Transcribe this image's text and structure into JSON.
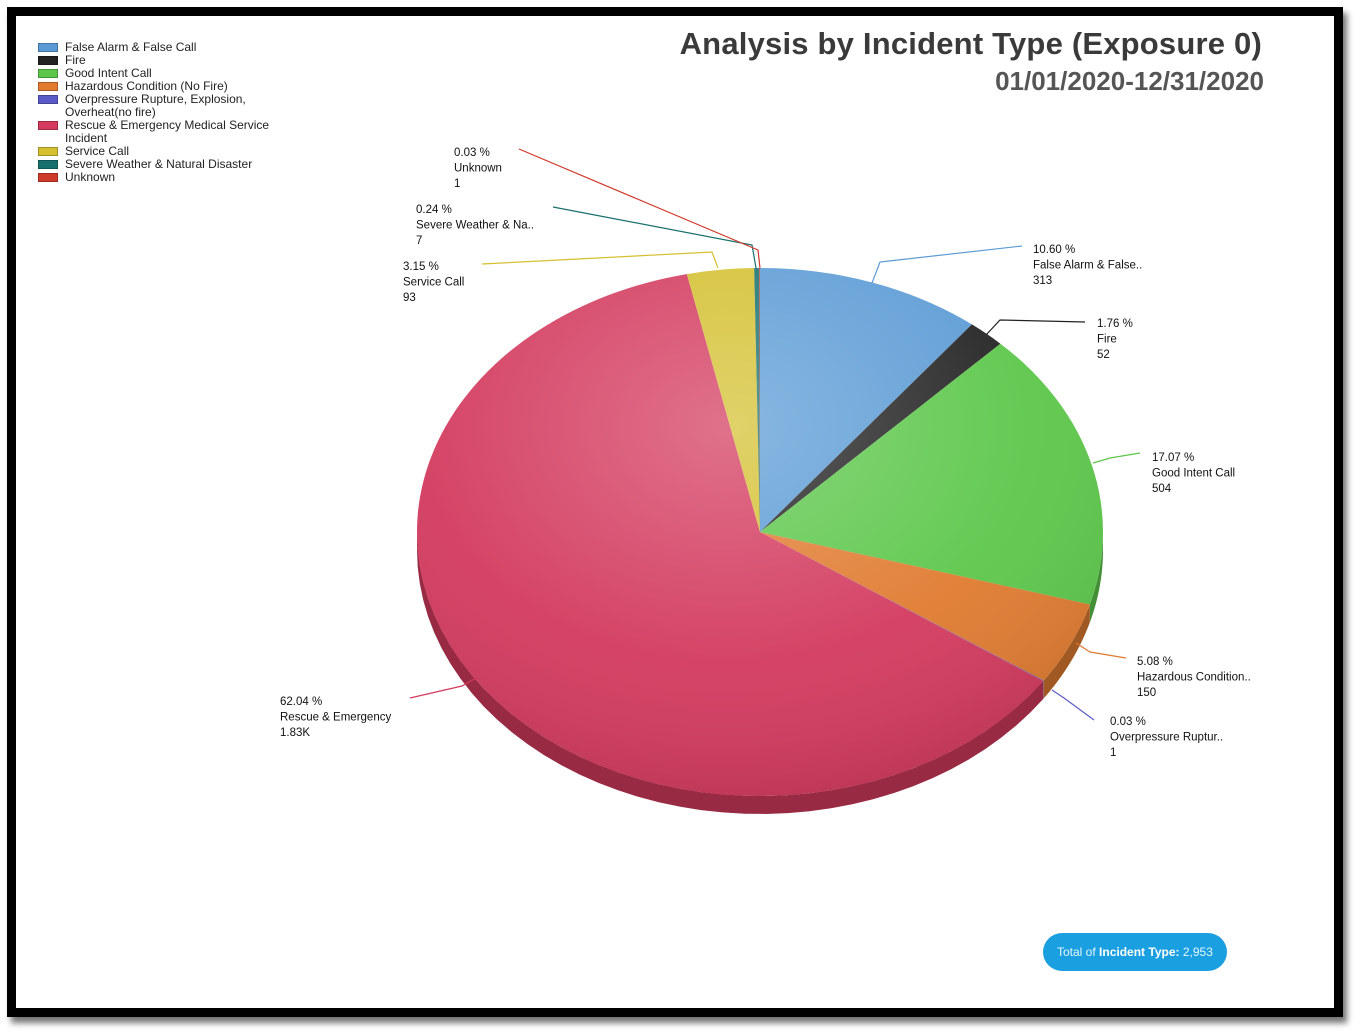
{
  "title": "Analysis by Incident Type (Exposure 0)",
  "subtitle": "01/01/2020-12/31/2020",
  "total": {
    "prefix": "Total of",
    "name": "Incident Type:",
    "value": "2,953"
  },
  "legend": [
    {
      "label": "False Alarm & False Call",
      "color": "#5b9bd5"
    },
    {
      "label": "Fire",
      "color": "#222222"
    },
    {
      "label": "Good Intent Call",
      "color": "#5cc74a"
    },
    {
      "label": "Hazardous Condition (No Fire)",
      "color": "#e07b30"
    },
    {
      "label": "Overpressure Rupture, Explosion, Overheat(no fire)",
      "color": "#5b5bc7"
    },
    {
      "label": "Rescue & Emergency Medical Service Incident",
      "color": "#d33a5e"
    },
    {
      "label": "Service Call",
      "color": "#d4c030"
    },
    {
      "label": "Severe Weather & Natural Disaster",
      "color": "#17706e"
    },
    {
      "label": "Unknown",
      "color": "#d03a2c"
    }
  ],
  "chart_data": {
    "type": "pie",
    "title": "Analysis by Incident Type (Exposure 0)",
    "subtitle": "01/01/2020-12/31/2020",
    "series": [
      {
        "name": "False Alarm & False Call",
        "value": 313,
        "percent": 10.6,
        "color": "#5b9bd5",
        "label": {
          "pct": "10.60 %",
          "name": "False Alarm & False..",
          "value": "313"
        }
      },
      {
        "name": "Fire",
        "value": 52,
        "percent": 1.76,
        "color": "#222222",
        "label": {
          "pct": "1.76 %",
          "name": "Fire",
          "value": "52"
        }
      },
      {
        "name": "Good Intent Call",
        "value": 504,
        "percent": 17.07,
        "color": "#5cc74a",
        "label": {
          "pct": "17.07 %",
          "name": "Good Intent Call",
          "value": "504"
        }
      },
      {
        "name": "Hazardous Condition (No Fire)",
        "value": 150,
        "percent": 5.08,
        "color": "#e07b30",
        "label": {
          "pct": "5.08 %",
          "name": "Hazardous Condition..",
          "value": "150"
        }
      },
      {
        "name": "Overpressure Rupture, Explosion, Overheat(no fire)",
        "value": 1,
        "percent": 0.03,
        "color": "#5b5bc7",
        "label": {
          "pct": "0.03 %",
          "name": "Overpressure Ruptur..",
          "value": "1"
        }
      },
      {
        "name": "Rescue & Emergency Medical Service Incident",
        "value": 1832,
        "percent": 62.04,
        "color": "#d33a5e",
        "label": {
          "pct": "62.04 %",
          "name": "Rescue & Emergency",
          "value": "1.83K"
        }
      },
      {
        "name": "Service Call",
        "value": 93,
        "percent": 3.15,
        "color": "#d4c030",
        "label": {
          "pct": "3.15 %",
          "name": "Service Call",
          "value": "93"
        }
      },
      {
        "name": "Severe Weather & Natural Disaster",
        "value": 7,
        "percent": 0.24,
        "color": "#17706e",
        "label": {
          "pct": "0.24 %",
          "name": "Severe Weather & Na..",
          "value": "7"
        }
      },
      {
        "name": "Unknown",
        "value": 1,
        "percent": 0.03,
        "color": "#d03a2c",
        "label": {
          "pct": "0.03 %",
          "name": "Unknown",
          "value": "1"
        }
      }
    ],
    "total": 2953
  }
}
